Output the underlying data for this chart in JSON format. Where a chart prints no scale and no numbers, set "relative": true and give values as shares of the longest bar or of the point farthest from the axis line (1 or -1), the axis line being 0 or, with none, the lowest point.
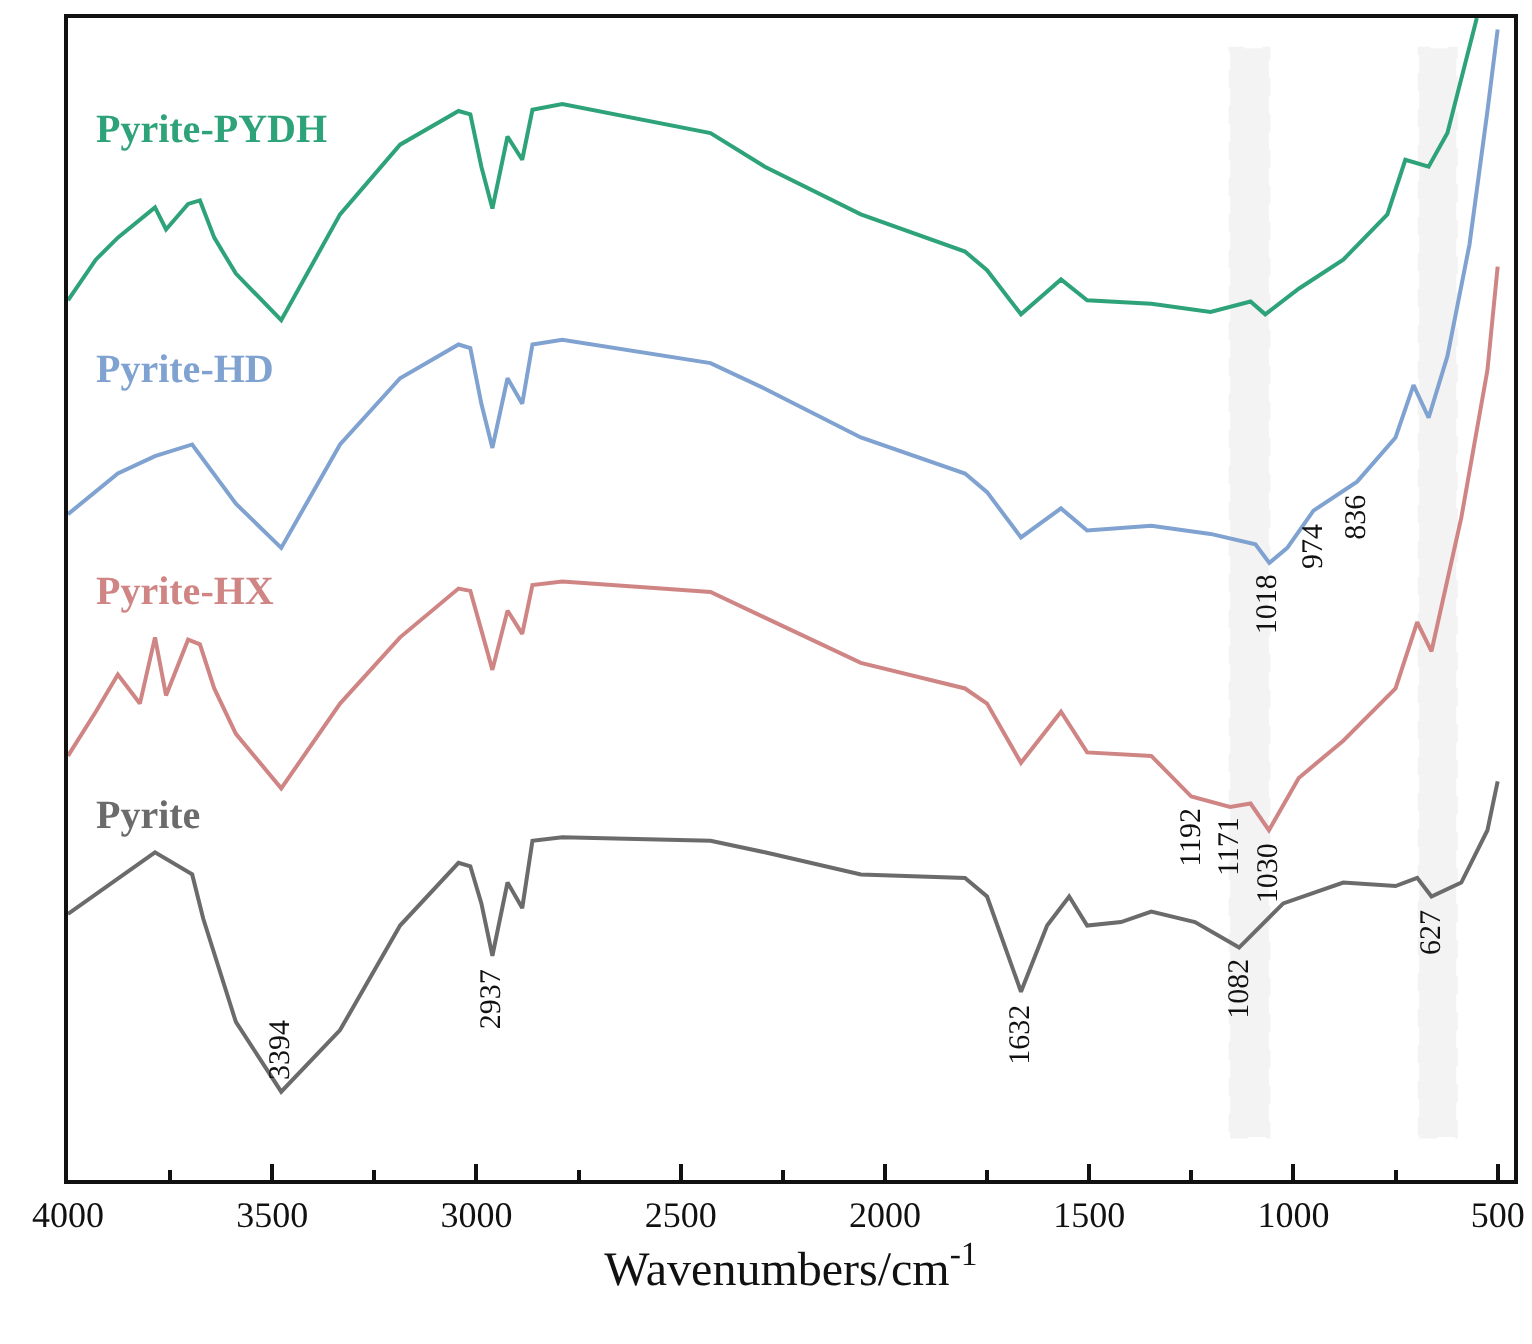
{
  "chart_data": {
    "type": "line",
    "relative": true,
    "xlabel": "Wavenumbers/cm$^{-1}$",
    "xlim": [
      4000,
      460
    ],
    "xticks": [
      4000,
      3500,
      3000,
      2500,
      2000,
      1500,
      1000,
      500
    ],
    "grid": false,
    "legend": false,
    "marker": "none",
    "line_style": "solid",
    "series": [
      {
        "name": "Pyrite",
        "color": "#6b6b6b",
        "x": [
          4000,
          3787,
          3696,
          3669,
          3589,
          3478,
          3334,
          3187,
          3044,
          3015,
          2988,
          2961,
          2924,
          2888,
          2863,
          2790,
          2427,
          2294,
          2059,
          1804,
          1750,
          1667,
          1603,
          1549,
          1505,
          1422,
          1348,
          1241,
          1133,
          1025,
          878,
          750,
          697,
          662,
          589,
          525,
          500
        ],
        "values": [
          0.229,
          0.282,
          0.263,
          0.225,
          0.136,
          0.076,
          0.129,
          0.219,
          0.273,
          0.27,
          0.238,
          0.193,
          0.256,
          0.234,
          0.292,
          0.295,
          0.292,
          0.282,
          0.263,
          0.26,
          0.244,
          0.162,
          0.219,
          0.244,
          0.219,
          0.222,
          0.231,
          0.222,
          0.2,
          0.238,
          0.256,
          0.253,
          0.26,
          0.244,
          0.256,
          0.301,
          0.343
        ]
      },
      {
        "name": "Pyrite-HX",
        "color": "#d08585",
        "x": [
          4000,
          3932,
          3878,
          3824,
          3787,
          3760,
          3706,
          3677,
          3642,
          3589,
          3478,
          3334,
          3187,
          3044,
          3015,
          2988,
          2961,
          2924,
          2888,
          2863,
          2790,
          2427,
          2294,
          2059,
          1804,
          1750,
          1667,
          1569,
          1505,
          1348,
          1250,
          1155,
          1105,
          1060,
          987,
          878,
          750,
          697,
          662,
          589,
          525,
          500
        ],
        "values": [
          0.365,
          0.403,
          0.435,
          0.41,
          0.467,
          0.417,
          0.465,
          0.461,
          0.423,
          0.384,
          0.337,
          0.41,
          0.467,
          0.509,
          0.507,
          0.473,
          0.439,
          0.49,
          0.47,
          0.512,
          0.515,
          0.506,
          0.484,
          0.445,
          0.423,
          0.41,
          0.359,
          0.403,
          0.368,
          0.365,
          0.33,
          0.321,
          0.324,
          0.301,
          0.346,
          0.378,
          0.423,
          0.48,
          0.455,
          0.57,
          0.697,
          0.786
        ]
      },
      {
        "name": "Pyrite-HD",
        "color": "#7fa2d0",
        "x": [
          4000,
          3878,
          3787,
          3696,
          3589,
          3478,
          3334,
          3187,
          3044,
          3015,
          2988,
          2961,
          2924,
          2888,
          2863,
          2790,
          2427,
          2294,
          2059,
          1804,
          1750,
          1667,
          1569,
          1505,
          1348,
          1203,
          1093,
          1059,
          1015,
          951,
          844,
          750,
          706,
          669,
          623,
          569,
          525,
          500
        ],
        "values": [
          0.573,
          0.608,
          0.623,
          0.633,
          0.582,
          0.544,
          0.633,
          0.69,
          0.719,
          0.716,
          0.668,
          0.63,
          0.69,
          0.668,
          0.719,
          0.723,
          0.703,
          0.681,
          0.639,
          0.608,
          0.592,
          0.553,
          0.578,
          0.559,
          0.563,
          0.556,
          0.547,
          0.531,
          0.544,
          0.576,
          0.601,
          0.639,
          0.684,
          0.656,
          0.709,
          0.805,
          0.92,
          0.99
        ]
      },
      {
        "name": "Pyrite-PYDH",
        "color": "#2ea37a",
        "x": [
          4000,
          3932,
          3878,
          3787,
          3760,
          3706,
          3677,
          3642,
          3589,
          3478,
          3334,
          3187,
          3044,
          3015,
          2988,
          2961,
          2924,
          2888,
          2863,
          2790,
          2427,
          2294,
          2059,
          1804,
          1750,
          1667,
          1569,
          1505,
          1348,
          1203,
          1105,
          1069,
          987,
          878,
          770,
          726,
          669,
          623,
          551
        ],
        "values": [
          0.757,
          0.792,
          0.811,
          0.837,
          0.818,
          0.84,
          0.843,
          0.811,
          0.78,
          0.74,
          0.831,
          0.891,
          0.92,
          0.917,
          0.872,
          0.836,
          0.898,
          0.878,
          0.921,
          0.926,
          0.901,
          0.872,
          0.831,
          0.799,
          0.783,
          0.745,
          0.775,
          0.757,
          0.754,
          0.747,
          0.756,
          0.745,
          0.767,
          0.792,
          0.831,
          0.878,
          0.872,
          0.901,
          1
        ]
      }
    ],
    "bands": [
      {
        "axis": "x",
        "from": 1155,
        "to": 1060,
        "color": "#a6a6a6"
      },
      {
        "axis": "x",
        "from": 692,
        "to": 601,
        "color": "#a6a6a6"
      }
    ],
    "annotations": [
      {
        "text": "3394",
        "x": 3478,
        "y": 0.076
      },
      {
        "text": "2937",
        "x": 2961,
        "y": 0.193
      },
      {
        "text": "1632",
        "x": 1667,
        "y": 0.162
      },
      {
        "text": "1082",
        "x": 1133,
        "y": 0.2
      },
      {
        "text": "1030",
        "x": 1060,
        "y": 0.301
      },
      {
        "text": "1192",
        "x": 1250,
        "y": 0.33
      },
      {
        "text": "1171",
        "x": 1155,
        "y": 0.321
      },
      {
        "text": "1018",
        "x": 1059,
        "y": 0.531
      },
      {
        "text": "974",
        "x": 951,
        "y": 0.576
      },
      {
        "text": "836",
        "x": 844,
        "y": 0.601
      },
      {
        "text": "627",
        "x": 662,
        "y": 0.244
      }
    ]
  }
}
